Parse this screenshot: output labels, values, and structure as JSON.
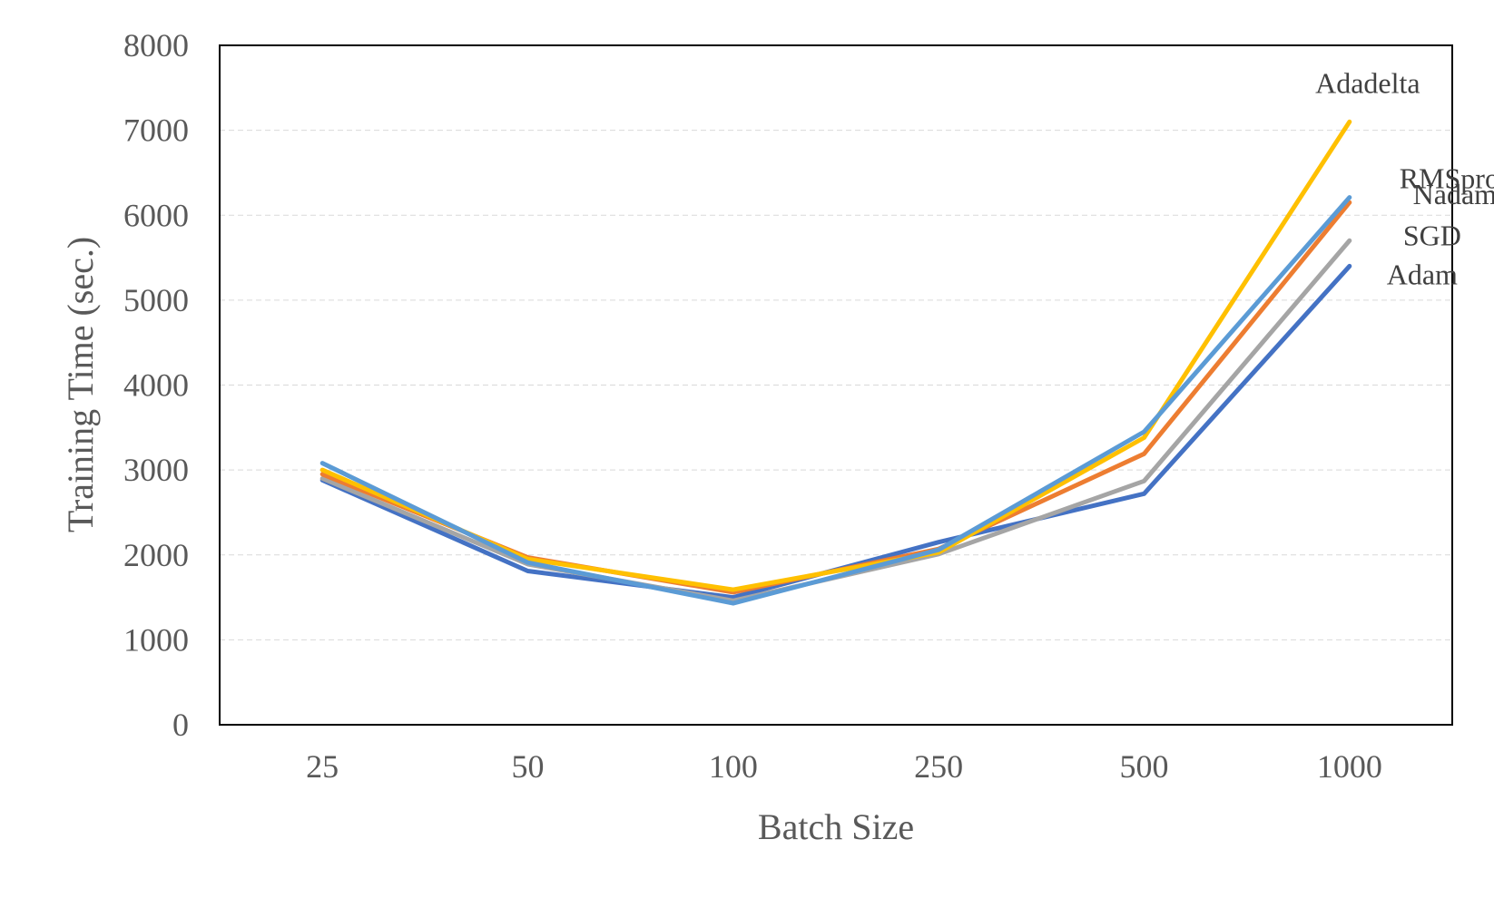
{
  "chart_data": {
    "type": "line",
    "title": "",
    "xlabel": "Batch Size",
    "ylabel": "Training Time (sec.)",
    "categories": [
      "25",
      "50",
      "100",
      "250",
      "500",
      "1000"
    ],
    "ylim": [
      0,
      8000
    ],
    "yticks": [
      0,
      1000,
      2000,
      3000,
      4000,
      5000,
      6000,
      7000,
      8000
    ],
    "grid": true,
    "legend": "none",
    "series": [
      {
        "name": "Adam",
        "color": "#4472c4",
        "values": [
          2880,
          1810,
          1500,
          2150,
          2720,
          5400
        ]
      },
      {
        "name": "SGD",
        "color": "#a5a5a5",
        "values": [
          2900,
          1890,
          1460,
          2010,
          2870,
          5700
        ]
      },
      {
        "name": "Nadam",
        "color": "#ed7d31",
        "values": [
          2950,
          1970,
          1560,
          2070,
          3190,
          6150
        ]
      },
      {
        "name": "Adadelta",
        "color": "#ffc000",
        "values": [
          3000,
          1950,
          1590,
          2030,
          3380,
          7100
        ]
      },
      {
        "name": "RMSprop",
        "color": "#5b9bd5",
        "values": [
          3080,
          1910,
          1430,
          2060,
          3450,
          6210
        ]
      }
    ],
    "label_order": [
      "Adadelta",
      "RMSprop",
      "Nadam",
      "SGD",
      "Adam"
    ]
  }
}
